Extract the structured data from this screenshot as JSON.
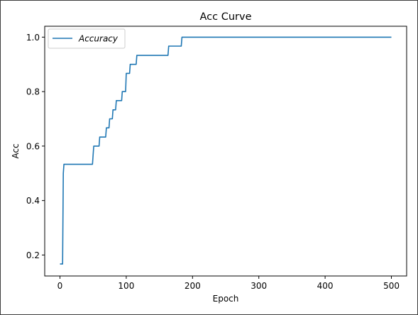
{
  "chart_data": {
    "type": "line",
    "title": "Acc Curve",
    "xlabel": "Epoch",
    "ylabel": "Acc",
    "xlim": [
      -23,
      523
    ],
    "ylim": [
      0.123,
      1.04
    ],
    "xticks": [
      0,
      100,
      200,
      300,
      400,
      500
    ],
    "yticks": [
      0.2,
      0.4,
      0.6,
      0.8,
      1.0
    ],
    "xtick_labels": [
      "0",
      "100",
      "200",
      "300",
      "400",
      "500"
    ],
    "ytick_labels": [
      "0.2",
      "0.4",
      "0.6",
      "0.8",
      "1.0"
    ],
    "legend": {
      "position": "upper-left",
      "entries": [
        "Accuracy"
      ]
    },
    "grid": false,
    "series": [
      {
        "name": "Accuracy",
        "color": "#1f77b4",
        "x": [
          0,
          4,
          5,
          6,
          49,
          50,
          51,
          59,
          60,
          69,
          70,
          74,
          75,
          79,
          80,
          84,
          85,
          93,
          94,
          99,
          100,
          105,
          106,
          115,
          116,
          163,
          164,
          183,
          184,
          500
        ],
        "y": [
          0.167,
          0.167,
          0.5,
          0.533,
          0.533,
          0.567,
          0.6,
          0.6,
          0.633,
          0.633,
          0.667,
          0.667,
          0.7,
          0.7,
          0.733,
          0.733,
          0.767,
          0.767,
          0.8,
          0.8,
          0.867,
          0.867,
          0.9,
          0.9,
          0.933,
          0.933,
          0.967,
          0.967,
          1.0,
          1.0
        ]
      }
    ]
  }
}
